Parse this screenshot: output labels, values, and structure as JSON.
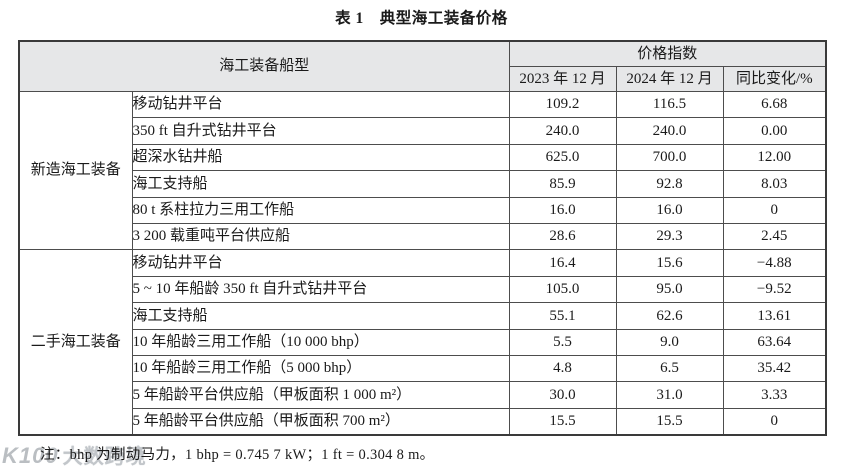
{
  "page": {
    "title": "表 1　典型海工装备价格",
    "note": "注：bhp 为制动马力，1 bhp = 0.745 7 kW；1 ft = 0.304 8 m。",
    "watermark": {
      "logo": "K100",
      "text": "大数跨境"
    }
  },
  "colors": {
    "header_bg": "#e6e7e8",
    "border": "#4d4d4d",
    "outer_border": "#3a3a3a",
    "text": "#1a1a1a",
    "watermark": "#a9aeb3"
  },
  "table": {
    "header": {
      "ship_type": "海工装备船型",
      "price_index": "价格指数",
      "dec_2023": "2023 年 12 月",
      "dec_2024": "2024 年 12 月",
      "yoy_change": "同比变化/%"
    },
    "groups": [
      {
        "label": "新造海工装备",
        "rows": [
          {
            "type": "移动钻井平台",
            "dec_2023": "109.2",
            "dec_2024": "116.5",
            "change": "6.68"
          },
          {
            "type": "350 ft 自升式钻井平台",
            "dec_2023": "240.0",
            "dec_2024": "240.0",
            "change": "0.00"
          },
          {
            "type": "超深水钻井船",
            "dec_2023": "625.0",
            "dec_2024": "700.0",
            "change": "12.00"
          },
          {
            "type": "海工支持船",
            "dec_2023": "85.9",
            "dec_2024": "92.8",
            "change": "8.03"
          },
          {
            "type": "80 t 系柱拉力三用工作船",
            "dec_2023": "16.0",
            "dec_2024": "16.0",
            "change": "0"
          },
          {
            "type": "3 200 载重吨平台供应船",
            "dec_2023": "28.6",
            "dec_2024": "29.3",
            "change": "2.45"
          }
        ]
      },
      {
        "label": "二手海工装备",
        "rows": [
          {
            "type": "移动钻井平台",
            "dec_2023": "16.4",
            "dec_2024": "15.6",
            "change": "−4.88"
          },
          {
            "type": "5 ~ 10 年船龄 350 ft 自升式钻井平台",
            "dec_2023": "105.0",
            "dec_2024": "95.0",
            "change": "−9.52"
          },
          {
            "type": "海工支持船",
            "dec_2023": "55.1",
            "dec_2024": "62.6",
            "change": "13.61"
          },
          {
            "type": "10 年船龄三用工作船（10 000 bhp）",
            "dec_2023": "5.5",
            "dec_2024": "9.0",
            "change": "63.64"
          },
          {
            "type": "10 年船龄三用工作船（5 000 bhp）",
            "dec_2023": "4.8",
            "dec_2024": "6.5",
            "change": "35.42"
          },
          {
            "type": "5 年船龄平台供应船（甲板面积 1 000 m²）",
            "dec_2023": "30.0",
            "dec_2024": "31.0",
            "change": "3.33"
          },
          {
            "type": "5 年船龄平台供应船（甲板面积 700 m²）",
            "dec_2023": "15.5",
            "dec_2024": "15.5",
            "change": "0"
          }
        ]
      }
    ]
  }
}
